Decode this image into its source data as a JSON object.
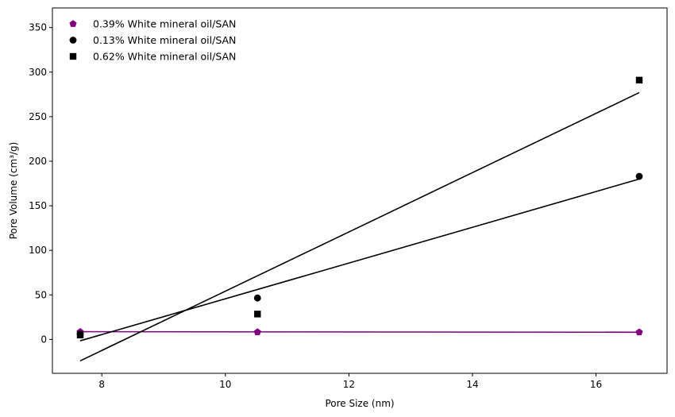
{
  "chart_data": {
    "type": "scatter",
    "title": "",
    "xlabel": "Pore Size (nm)",
    "ylabel": "Pore Volume (cm³/g)",
    "xlim": [
      7.2,
      17.15
    ],
    "ylim": [
      -38,
      372
    ],
    "xticks": [
      8,
      10,
      12,
      14,
      16
    ],
    "yticks": [
      0,
      50,
      100,
      150,
      200,
      250,
      300,
      350
    ],
    "grid": false,
    "legend_position": "top-left",
    "series": [
      {
        "name": "0.39% White mineral oil/SAN",
        "marker": "pentagon",
        "color": "#800080",
        "points": [
          [
            7.65,
            8.5
          ],
          [
            10.52,
            8.3
          ],
          [
            16.7,
            8.1
          ]
        ],
        "fit_line": {
          "x": [
            7.65,
            16.7
          ],
          "y": [
            8.7,
            8.1
          ]
        }
      },
      {
        "name": "0.13% White mineral oil/SAN",
        "marker": "circle",
        "color": "#000000",
        "points": [
          [
            7.65,
            6.0
          ],
          [
            10.52,
            46.5
          ],
          [
            16.7,
            183.0
          ]
        ],
        "fit_line": {
          "x": [
            7.65,
            16.7
          ],
          "y": [
            -1.5,
            180.0
          ]
        }
      },
      {
        "name": "0.62% White mineral oil/SAN",
        "marker": "square",
        "color": "#000000",
        "points": [
          [
            7.65,
            5.0
          ],
          [
            10.52,
            28.5
          ],
          [
            16.7,
            291.0
          ]
        ],
        "fit_line": {
          "x": [
            7.65,
            16.7
          ],
          "y": [
            -24.0,
            277.0
          ]
        }
      }
    ]
  }
}
